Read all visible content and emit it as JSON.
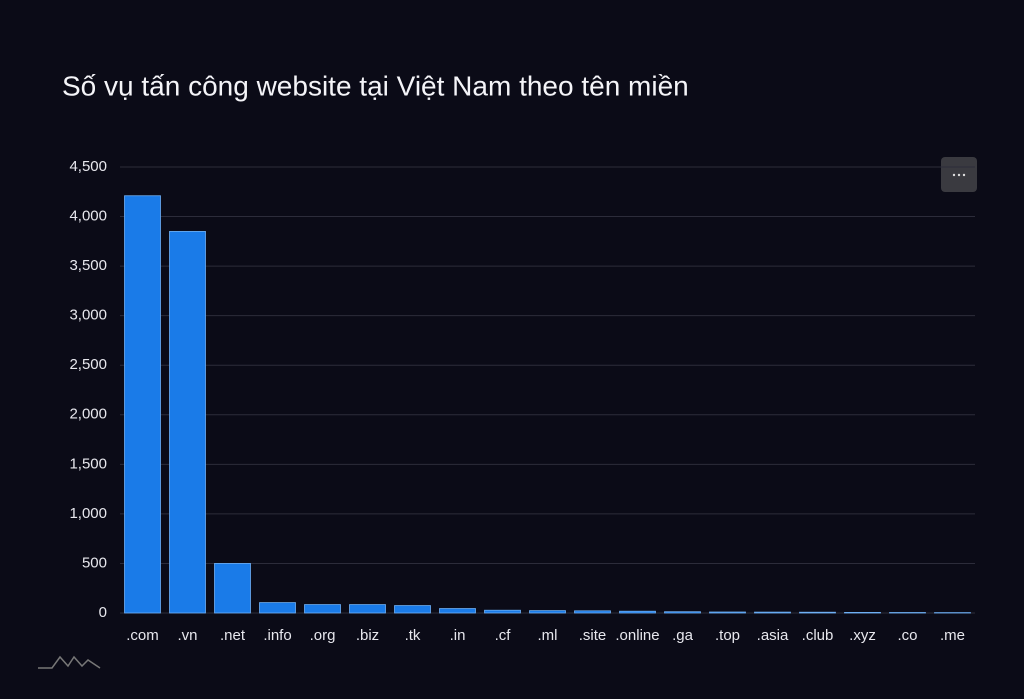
{
  "chart_data": {
    "type": "bar",
    "title": "Số vụ tấn công website tại Việt Nam theo tên miền",
    "categories": [
      ".com",
      ".vn",
      ".net",
      ".info",
      ".org",
      ".biz",
      ".tk",
      ".in",
      ".cf",
      ".ml",
      ".site",
      ".online",
      ".ga",
      ".top",
      ".asia",
      ".club",
      ".xyz",
      ".co",
      ".me"
    ],
    "values": [
      4210,
      3850,
      500,
      105,
      85,
      85,
      75,
      45,
      28,
      24,
      22,
      18,
      13,
      10,
      9,
      8,
      6,
      5,
      4
    ],
    "color": "#1a7be8",
    "ylim": [
      0,
      4500
    ],
    "yticks": [
      0,
      500,
      {
        "value": 1000,
        "label": "1,000"
      },
      {
        "value": 1500,
        "label": "1,500"
      },
      {
        "value": 2000,
        "label": "2,000"
      },
      {
        "value": 2500,
        "label": "2,500"
      },
      {
        "value": 3000,
        "label": "3,000"
      },
      {
        "value": 3500,
        "label": "3,500"
      },
      {
        "value": 4000,
        "label": "4,000"
      },
      {
        "value": 4500,
        "label": "4,500"
      }
    ],
    "grid": true
  }
}
